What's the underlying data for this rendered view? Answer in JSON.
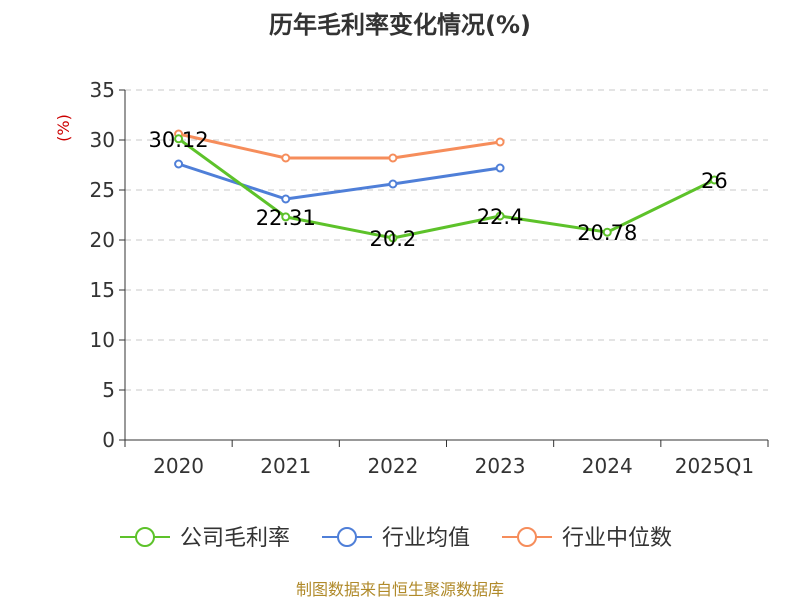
{
  "chart_data": {
    "type": "line",
    "title": "历年毛利率变化情况(%)",
    "ylabel": "(%)",
    "xlabel": "",
    "categories": [
      "2020",
      "2021",
      "2022",
      "2023",
      "2024",
      "2025Q1"
    ],
    "ylim": [
      0,
      35
    ],
    "yticks": [
      "0",
      "5",
      "10",
      "15",
      "20",
      "25",
      "30",
      "35"
    ],
    "grid": true,
    "legend_position": "bottom",
    "series": [
      {
        "name": "公司毛利率",
        "color": "#5dc22a",
        "values": [
          30.12,
          22.31,
          20.2,
          22.4,
          20.78,
          26
        ],
        "labels": [
          "30.12",
          "22.31",
          "20.2",
          "22.4",
          "20.78",
          "26"
        ]
      },
      {
        "name": "行业均值",
        "color": "#4f7fd8",
        "values": [
          27.6,
          24.1,
          25.6,
          27.2,
          null,
          null
        ]
      },
      {
        "name": "行业中位数",
        "color": "#f68d5b",
        "values": [
          30.6,
          28.2,
          28.2,
          29.8,
          null,
          null
        ]
      }
    ],
    "source": "制图数据来自恒生聚源数据库"
  }
}
